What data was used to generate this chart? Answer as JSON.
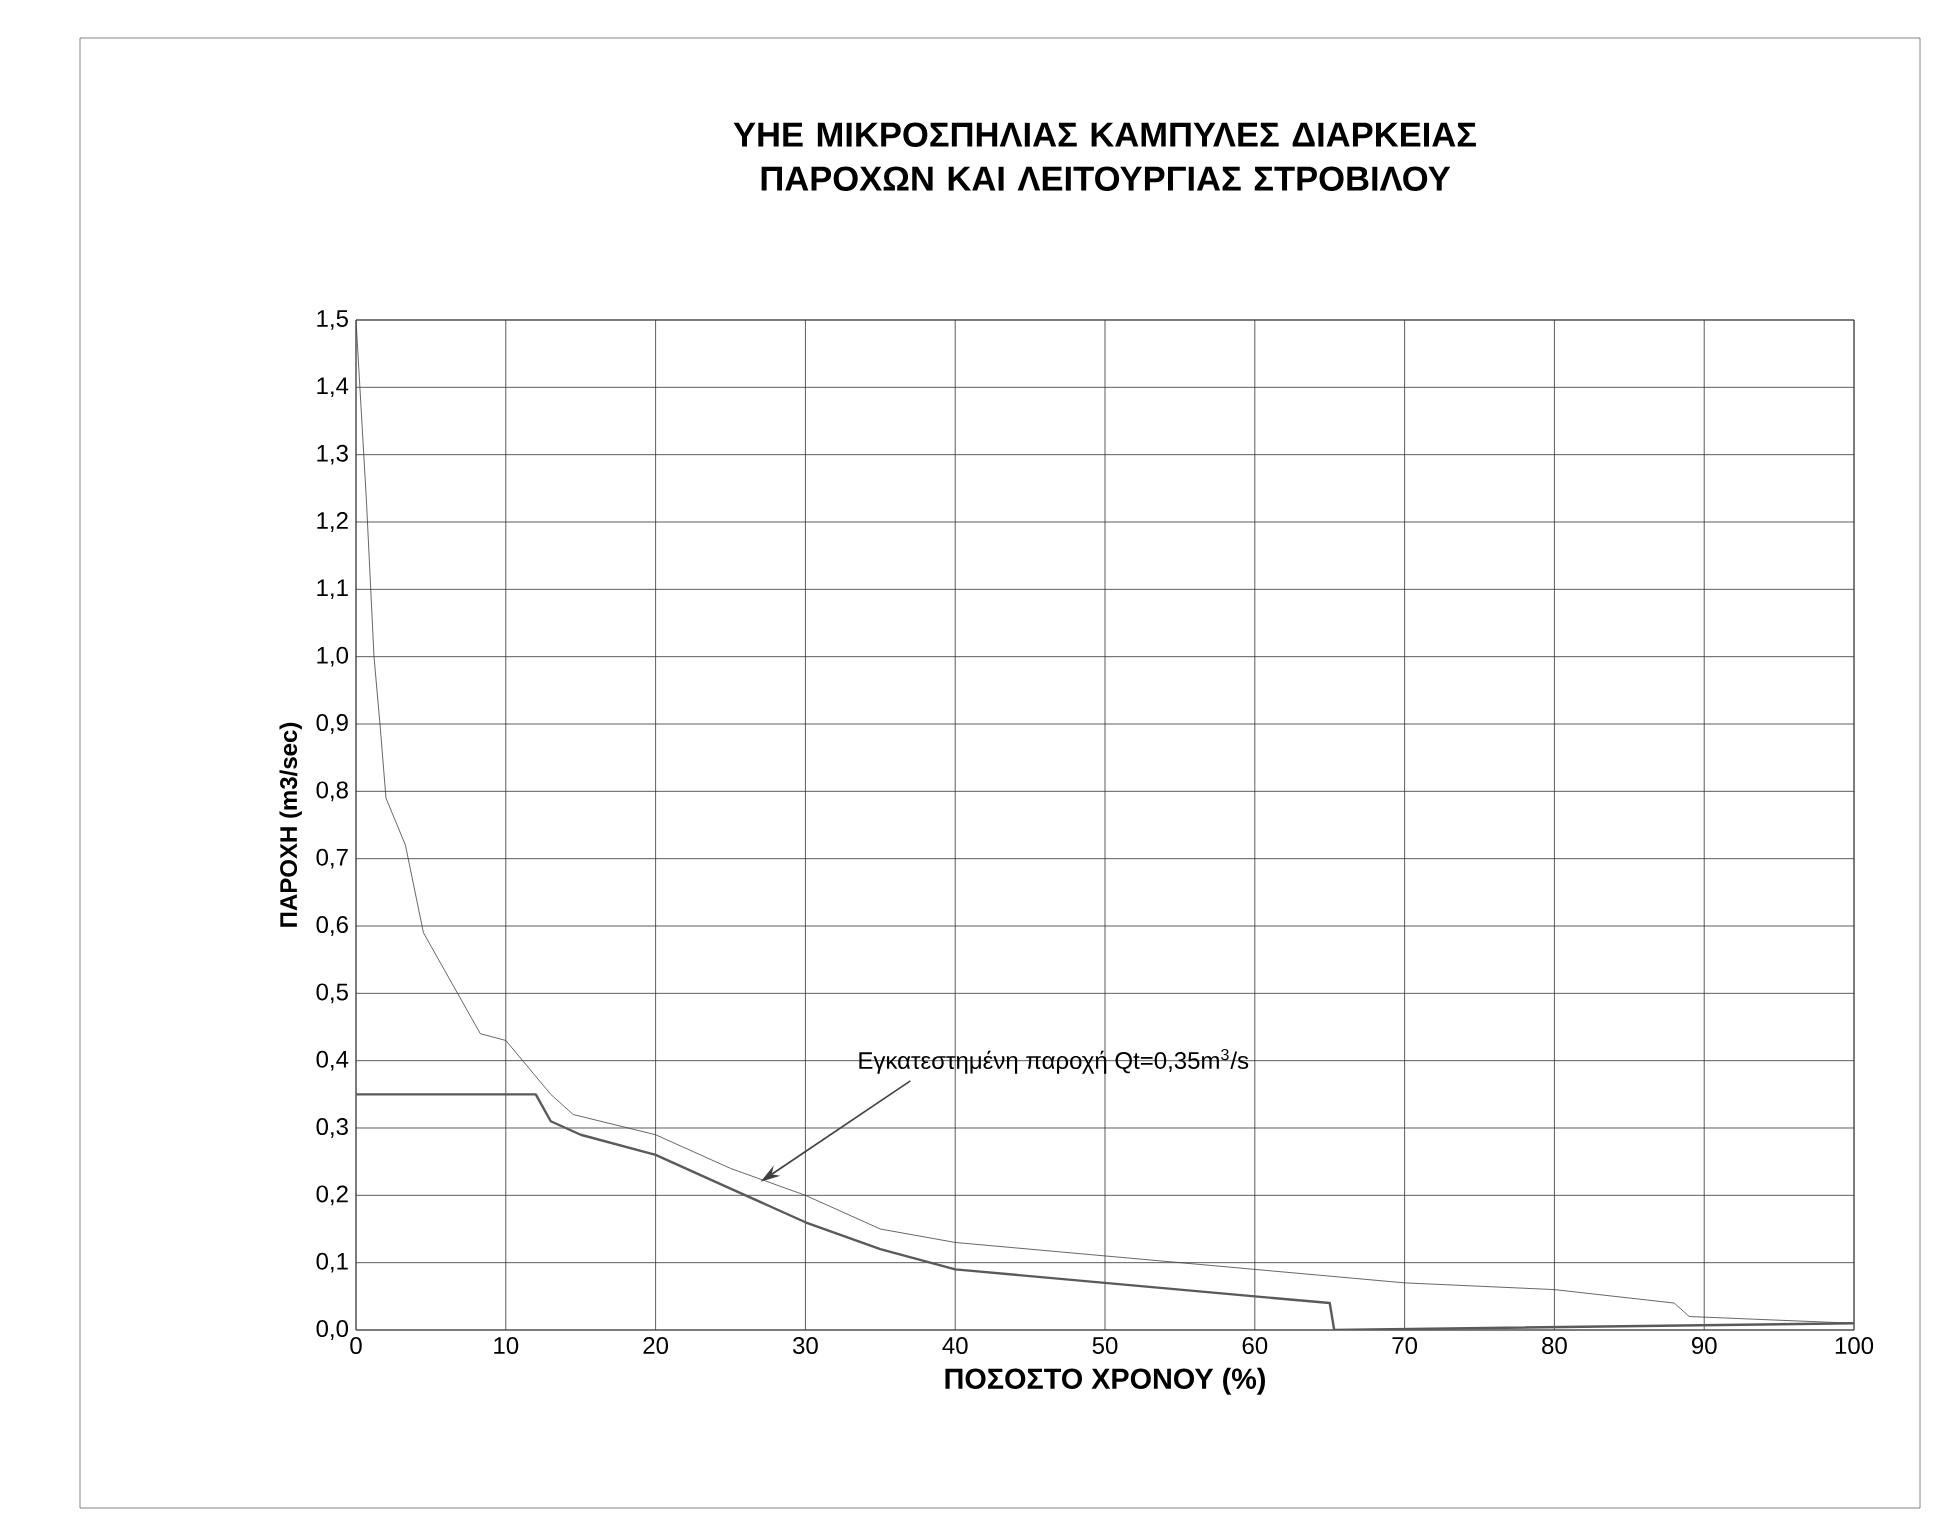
{
  "chart_data": {
    "type": "line",
    "title": "ΥΗΕ ΜΙΚΡΟΣΠΗΛΙΑΣ ΚΑΜΠΥΛΕΣ ΔΙΑΡΚΕΙΑΣ ΠΑΡΟΧΩΝ ΚΑΙ ΛΕΙΤΟΥΡΓΙΑΣ ΣΤΡΟΒΙΛΟΥ",
    "xlabel": "ΠΟΣΟΣΤΟ ΧΡΟΝΟΥ (%)",
    "ylabel": "ΠΑΡΟΧΗ (m3/sec)",
    "annotations": [
      {
        "text": "Εγκατεστημένη παροχή Qt=0,35m$^{3}$/s",
        "x": 27,
        "y": 0.22
      }
    ],
    "series": [
      {
        "color": "#404040",
        "x": [
          0,
          0.7,
          1.2,
          1.6,
          2,
          3.3,
          4.5,
          8.3,
          10,
          13,
          14.5,
          20,
          25,
          30,
          35,
          40,
          50,
          60,
          70,
          80,
          88,
          89,
          100
        ],
        "values": [
          1.5,
          1.23,
          1.0,
          0.9,
          0.79,
          0.72,
          0.59,
          0.44,
          0.43,
          0.35,
          0.32,
          0.29,
          0.24,
          0.2,
          0.15,
          0.13,
          0.11,
          0.09,
          0.07,
          0.06,
          0.04,
          0.02,
          0.01
        ]
      },
      {
        "color": "#5a5a5a",
        "x": [
          0,
          12,
          13,
          15,
          20,
          25,
          30,
          35,
          40,
          50,
          60,
          65,
          65.3,
          100
        ],
        "values": [
          0.35,
          0.35,
          0.31,
          0.29,
          0.26,
          0.21,
          0.16,
          0.12,
          0.09,
          0.07,
          0.05,
          0.04,
          0.0,
          0.01
        ]
      }
    ],
    "xlim": [
      0,
      100
    ],
    "ylim": [
      0,
      1.5
    ],
    "xticks": [
      0,
      10,
      20,
      30,
      40,
      50,
      60,
      70,
      80,
      90,
      100
    ],
    "yticks": [
      {
        "value": 0,
        "label": "0,0"
      },
      {
        "value": 0.1,
        "label": "0,1"
      },
      {
        "value": 0.2,
        "label": "0,2"
      },
      {
        "value": 0.3,
        "label": "0,3"
      },
      {
        "value": 0.4,
        "label": "0,4"
      },
      {
        "value": 0.5,
        "label": "0,5"
      },
      {
        "value": 0.6,
        "label": "0,6"
      },
      {
        "value": 0.7,
        "label": "0,7"
      },
      {
        "value": 0.8,
        "label": "0,8"
      },
      {
        "value": 0.9,
        "label": "0,9"
      },
      {
        "value": 1.0,
        "label": "1,0"
      },
      {
        "value": 1.1,
        "label": "1,1"
      },
      {
        "value": 1.2,
        "label": "1,2"
      },
      {
        "value": 1.3,
        "label": "1,3"
      },
      {
        "value": 1.4,
        "label": "1,4"
      },
      {
        "value": 1.5,
        "label": "1,5"
      }
    ],
    "grid": true
  }
}
